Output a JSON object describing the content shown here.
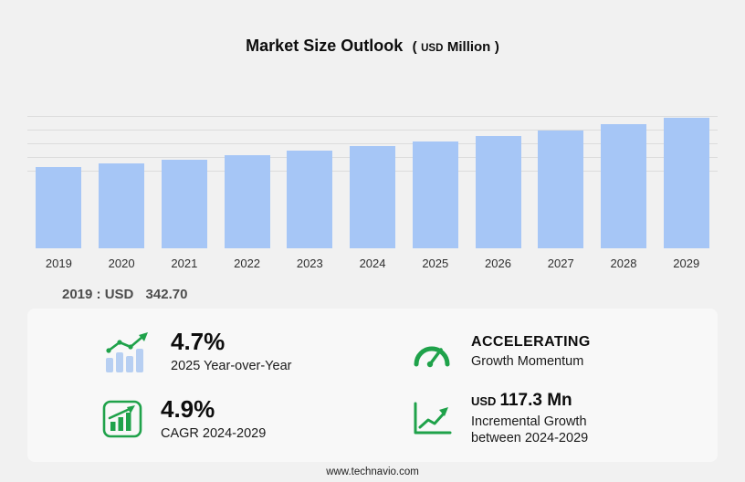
{
  "title": {
    "main": "Market Size Outlook",
    "unit_open": "(",
    "unit_currency": "USD",
    "unit_name": "Million",
    "unit_close": ")"
  },
  "chart_data": {
    "type": "bar",
    "title": "Market Size Outlook (USD Million)",
    "categories": [
      "2019",
      "2020",
      "2021",
      "2022",
      "2023",
      "2024",
      "2025",
      "2026",
      "2027",
      "2028",
      "2029"
    ],
    "values": [
      342.7,
      359.2,
      376.4,
      394.5,
      413.4,
      433.3,
      453.7,
      476.4,
      500.0,
      524.8,
      550.6
    ],
    "xlabel": "",
    "ylabel": "",
    "ylim": [
      0,
      560
    ],
    "grid": true,
    "legend": false,
    "bar_color": "#a6c6f6"
  },
  "note": {
    "label": "2019 : USD",
    "value": "342.70"
  },
  "stats": [
    {
      "icon": "bar-chart-trend-icon",
      "value": "4.7%",
      "label": "2025 Year-over-Year"
    },
    {
      "icon": "speedometer-icon",
      "value": "ACCELERATING",
      "label": "Growth Momentum"
    },
    {
      "icon": "cagr-chart-icon",
      "value": "4.9%",
      "label": "CAGR 2024-2029"
    },
    {
      "icon": "line-chart-arrow-icon",
      "value_prefix": "USD",
      "value": "117.3 Mn",
      "label": "Incremental Growth between 2024-2029"
    }
  ],
  "footer": {
    "url": "www.technavio.com"
  },
  "colors": {
    "accent_green": "#1fa24a",
    "bar_blue": "#a6c6f6",
    "background": "#f1f1f1"
  }
}
